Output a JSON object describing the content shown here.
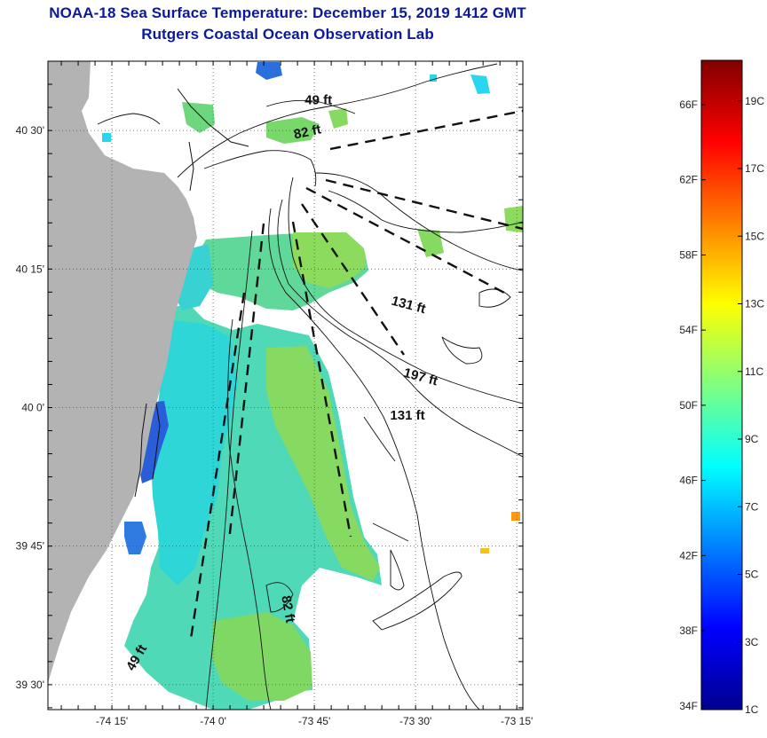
{
  "title_line1": "NOAA-18 Sea Surface Temperature:  December 15, 2019 1412 GMT",
  "title_line2": "Rutgers Coastal Ocean Observation Lab",
  "map": {
    "lat_ticks": [
      {
        "lat": 40.5,
        "label": "40 30'"
      },
      {
        "lat": 40.25,
        "label": "40 15'"
      },
      {
        "lat": 40.0,
        "label": "40 0'"
      },
      {
        "lat": 39.75,
        "label": "39 45'"
      },
      {
        "lat": 39.5,
        "label": "39 30'"
      }
    ],
    "lon_ticks": [
      {
        "lon": -74.25,
        "label": "-74 15'"
      },
      {
        "lon": -74.0,
        "label": "-74 0'"
      },
      {
        "lon": -73.75,
        "label": "-73 45'"
      },
      {
        "lon": -73.5,
        "label": "-73 30'"
      },
      {
        "lon": -73.25,
        "label": "-73 15'"
      }
    ],
    "lat_range": [
      39.455,
      40.625
    ],
    "lon_range": [
      -74.408,
      -73.235
    ],
    "contour_labels": [
      {
        "text": "49 ft",
        "lon": -73.74,
        "lat": 40.547,
        "rotate": 0
      },
      {
        "text": "82 ft",
        "lon": -73.765,
        "lat": 40.49,
        "rotate": -12
      },
      {
        "text": "131 ft",
        "lon": -73.52,
        "lat": 40.178,
        "rotate": 15
      },
      {
        "text": "197 ft",
        "lon": -73.49,
        "lat": 40.048,
        "rotate": 15
      },
      {
        "text": "131 ft",
        "lon": -73.52,
        "lat": 39.978,
        "rotate": 0
      },
      {
        "text": "82 ft",
        "lon": -73.825,
        "lat": 39.635,
        "rotate": 80
      },
      {
        "text": "49 ft",
        "lon": -74.18,
        "lat": 39.545,
        "rotate": -60
      }
    ]
  },
  "colorbar": {
    "f_labels": [
      "66F",
      "62F",
      "58F",
      "54F",
      "50F",
      "46F",
      "42F",
      "38F",
      "34F"
    ],
    "c_labels": [
      "19C",
      "17C",
      "15C",
      "13C",
      "11C",
      "9C",
      "7C",
      "5C",
      "3C",
      "1C"
    ],
    "min_c": 1,
    "max_c": 20.2,
    "colormap": "jet"
  },
  "colors": {
    "title": "#0b1a9c",
    "land": "#b3b3b3",
    "sst_cool": "#21d3e2",
    "sst_mid": "#79d86a",
    "sst_cold": "#2a5ed8"
  }
}
